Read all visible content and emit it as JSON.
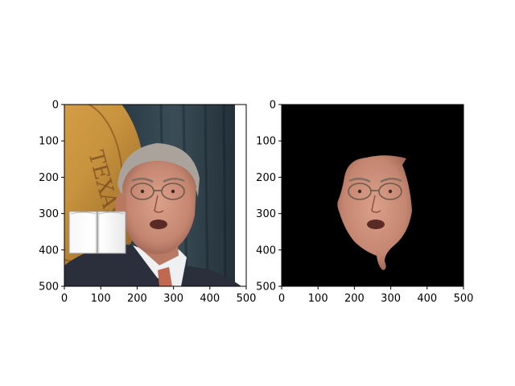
{
  "figure": {
    "panels": [
      {
        "name": "left",
        "content": "photo of a man with a partially occluding open book",
        "xlim": [
          0,
          500
        ],
        "ylim": [
          500,
          0
        ],
        "xticks": [
          "0",
          "100",
          "200",
          "300",
          "400",
          "500"
        ],
        "yticks": [
          "0",
          "100",
          "200",
          "300",
          "400",
          "500"
        ]
      },
      {
        "name": "right",
        "content": "face segmentation mask applied to photo on black background",
        "xlim": [
          0,
          500
        ],
        "ylim": [
          500,
          0
        ],
        "xticks": [
          "0",
          "100",
          "200",
          "300",
          "400",
          "500"
        ],
        "yticks": [
          "0",
          "100",
          "200",
          "300",
          "400",
          "500"
        ]
      }
    ],
    "colors": {
      "background": "#ffffff",
      "mask_bg": "#000000",
      "seal_gold": "#c8933e",
      "curtain": "#2a3a45",
      "suit": "#2b2f3c",
      "skin": "#c98f78",
      "hair": "#a9a39b",
      "tie": "#c06850"
    }
  }
}
